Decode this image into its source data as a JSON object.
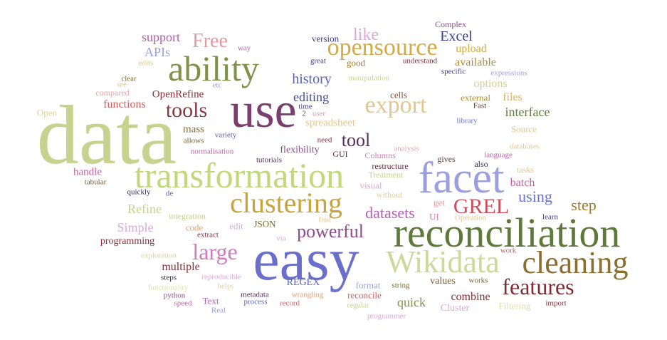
{
  "words": [
    {
      "text": "data",
      "color": "#c6d28e"
    },
    {
      "text": "easy",
      "color": "#6a6fcc"
    },
    {
      "text": "reconciliation",
      "color": "#5d7a3a"
    },
    {
      "text": "use",
      "color": "#7a3f6e"
    },
    {
      "text": "facet",
      "color": "#9b9fe0"
    },
    {
      "text": "transformation",
      "color": "#c2d87a"
    },
    {
      "text": "Wikidata",
      "color": "#cdd89a"
    },
    {
      "text": "ability",
      "color": "#7f9248"
    },
    {
      "text": "cleaning",
      "color": "#8a6e32"
    },
    {
      "text": "clustering",
      "color": "#c8a43e"
    },
    {
      "text": "opensource",
      "color": "#d4aa45"
    },
    {
      "text": "features",
      "color": "#7d2e33"
    },
    {
      "text": "export",
      "color": "#e2c78f"
    },
    {
      "text": "GREL",
      "color": "#cc4f5b"
    },
    {
      "text": "tools",
      "color": "#8b3540"
    },
    {
      "text": "large",
      "color": "#d07bc0"
    },
    {
      "text": "powerful",
      "color": "#8e4b8c"
    },
    {
      "text": "Free",
      "color": "#e39aa0"
    },
    {
      "text": "tool",
      "color": "#5b2d5c"
    },
    {
      "text": "datasets",
      "color": "#b65fb6"
    },
    {
      "text": "like",
      "color": "#e0a6dc"
    },
    {
      "text": "using",
      "color": "#6b73d6"
    },
    {
      "text": "step",
      "color": "#9c7a2a"
    },
    {
      "text": "Excel",
      "color": "#3c3c8c"
    },
    {
      "text": "history",
      "color": "#5a63b8"
    },
    {
      "text": "interface",
      "color": "#5d7a3a"
    },
    {
      "text": "editing",
      "color": "#3f4d96"
    },
    {
      "text": "APIs",
      "color": "#9aa0df"
    },
    {
      "text": "support",
      "color": "#b05ea8"
    },
    {
      "text": "Refine",
      "color": "#c6d28e"
    },
    {
      "text": "Simple",
      "color": "#dba9de"
    },
    {
      "text": "batch",
      "color": "#c25f9b"
    },
    {
      "text": "options",
      "color": "#d4d08e"
    },
    {
      "text": "files",
      "color": "#d9b56a"
    },
    {
      "text": "combine",
      "color": "#7d2e33"
    },
    {
      "text": "quick",
      "color": "#7f9248"
    },
    {
      "text": "multiple",
      "color": "#7d2e33"
    },
    {
      "text": "upload",
      "color": "#d4aa45"
    },
    {
      "text": "available",
      "color": "#b08c30"
    },
    {
      "text": "functions",
      "color": "#d2605e"
    },
    {
      "text": "OpenRefine",
      "color": "#8a2e3c"
    },
    {
      "text": "mass",
      "color": "#8a6e32"
    },
    {
      "text": "spreadsheet",
      "color": "#e2c78f"
    },
    {
      "text": "handle",
      "color": "#c25fa6"
    },
    {
      "text": "flexibility",
      "color": "#8e4b8c"
    },
    {
      "text": "values",
      "color": "#7a5c2a"
    },
    {
      "text": "Source",
      "color": "#e2c78f"
    },
    {
      "text": "Cluster",
      "color": "#dba9de"
    },
    {
      "text": "Text",
      "color": "#b65fb6"
    },
    {
      "text": "version",
      "color": "#3c3c8c"
    },
    {
      "text": "good",
      "color": "#9c7a2a"
    },
    {
      "text": "cells",
      "color": "#8a4a2a"
    },
    {
      "text": "external",
      "color": "#b08c30"
    },
    {
      "text": "REGEX",
      "color": "#5a63b8"
    },
    {
      "text": "JSON",
      "color": "#7a6a2a"
    },
    {
      "text": "edit",
      "color": "#dba9de"
    },
    {
      "text": "programming",
      "color": "#8a2e3c"
    },
    {
      "text": "Filtering",
      "color": "#dce0a8"
    },
    {
      "text": "format",
      "color": "#9aa0df"
    },
    {
      "text": "reconcile",
      "color": "#d2605e"
    },
    {
      "text": "visual",
      "color": "#e0a6dc"
    },
    {
      "text": "UI",
      "color": "#cc7ac0"
    },
    {
      "text": "get",
      "color": "#e39aa0"
    },
    {
      "text": "code",
      "color": "#e3a07a"
    },
    {
      "text": "Columns",
      "color": "#d07bc0"
    },
    {
      "text": "GUI",
      "color": "#5b2d5c"
    },
    {
      "text": "Complex",
      "color": "#8e4b8c"
    },
    {
      "text": "Open",
      "color": "#dcd29a"
    },
    {
      "text": "compared",
      "color": "#e5a5a8"
    },
    {
      "text": "integration",
      "color": "#c6d28e"
    },
    {
      "text": "tasks",
      "color": "#e2c78f"
    },
    {
      "text": "gives",
      "color": "#5a3a3a"
    },
    {
      "text": "also",
      "color": "#2e2e5c"
    },
    {
      "text": "without",
      "color": "#dcd29a"
    },
    {
      "text": "Treatment",
      "color": "#c6d28e"
    },
    {
      "text": "restructure",
      "color": "#6a2a3a"
    },
    {
      "text": "wrangling",
      "color": "#e3a07a"
    },
    {
      "text": "record",
      "color": "#d2605e"
    },
    {
      "text": "metadata",
      "color": "#5b2d5c"
    },
    {
      "text": "process",
      "color": "#5a63b8"
    },
    {
      "text": "works",
      "color": "#7a6a2a"
    },
    {
      "text": "string",
      "color": "#7a6a2a"
    },
    {
      "text": "Real",
      "color": "#9aa0df"
    },
    {
      "text": "speed",
      "color": "#c25fa6"
    },
    {
      "text": "python",
      "color": "#8e4b8c"
    },
    {
      "text": "functionality",
      "color": "#dce0a8"
    },
    {
      "text": "exploration",
      "color": "#dcd29a"
    },
    {
      "text": "steps",
      "color": "#2e2e5c"
    },
    {
      "text": "reproducible",
      "color": "#e0a6dc"
    },
    {
      "text": "helps",
      "color": "#dcd29a"
    },
    {
      "text": "extract",
      "color": "#8a2e3c"
    },
    {
      "text": "via",
      "color": "#dba9de"
    },
    {
      "text": "find",
      "color": "#e2c78f"
    },
    {
      "text": "Operation",
      "color": "#e2c78f"
    },
    {
      "text": "learn",
      "color": "#3c3c8c"
    },
    {
      "text": "work",
      "color": "#d2605e"
    },
    {
      "text": "import",
      "color": "#8a2e3c"
    },
    {
      "text": "regular",
      "color": "#c6d28e"
    },
    {
      "text": "programmer",
      "color": "#e0a6dc"
    },
    {
      "text": "databases",
      "color": "#e2c78f"
    },
    {
      "text": "language",
      "color": "#c25fa6"
    },
    {
      "text": "Fast",
      "color": "#5a3a3a"
    },
    {
      "text": "library",
      "color": "#6b73d6"
    },
    {
      "text": "specific",
      "color": "#3c3c8c"
    },
    {
      "text": "expressions",
      "color": "#9aa0df"
    },
    {
      "text": "understand",
      "color": "#8a2e3c"
    },
    {
      "text": "manipulation",
      "color": "#c6d28e"
    },
    {
      "text": "great",
      "color": "#3c3c8c"
    },
    {
      "text": "way",
      "color": "#b65fb6"
    },
    {
      "text": "edits",
      "color": "#e2c78f"
    },
    {
      "text": "clear",
      "color": "#7a6a2a"
    },
    {
      "text": "see",
      "color": "#e2c78f"
    },
    {
      "text": "etc",
      "color": "#9aa0df"
    },
    {
      "text": "time",
      "color": "#3c3c8c"
    },
    {
      "text": "2",
      "color": "#5a3a3a"
    },
    {
      "text": "user",
      "color": "#e39aa0"
    },
    {
      "text": "need",
      "color": "#8a2e3c"
    },
    {
      "text": "analysis",
      "color": "#e5a5a8"
    },
    {
      "text": "tutorials",
      "color": "#5b2d5c"
    },
    {
      "text": "allows",
      "color": "#7a5c2a"
    },
    {
      "text": "variety",
      "color": "#5a63b8"
    },
    {
      "text": "normalisation",
      "color": "#c25fa6"
    },
    {
      "text": "tabular",
      "color": "#7a5c2a"
    },
    {
      "text": "quickly",
      "color": "#2e2e5c"
    },
    {
      "text": "de",
      "color": "#5a63b8"
    }
  ]
}
